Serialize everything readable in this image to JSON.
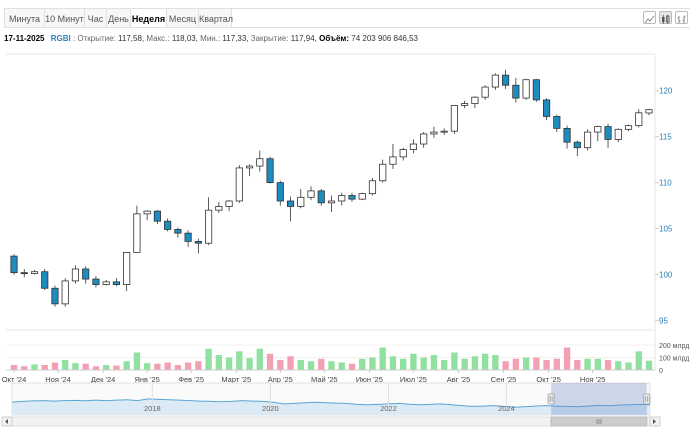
{
  "tabs": [
    {
      "label": "Минута",
      "active": false
    },
    {
      "label": "10 Минут",
      "active": false
    },
    {
      "label": "Час",
      "active": false
    },
    {
      "label": "День",
      "active": false
    },
    {
      "label": "Неделя",
      "active": true
    },
    {
      "label": "Месяц",
      "active": false
    },
    {
      "label": "Квартал",
      "active": false
    }
  ],
  "chart_types": [
    "area-chart-icon",
    "candlestick-chart-icon",
    "bar-chart-icon"
  ],
  "info": {
    "date": "17-11-2025",
    "ticker": "RGBI",
    "open_label": "Открытие:",
    "open": "117,58",
    "high_label": "Макс.:",
    "high": "118,03",
    "low_label": "Мин.:",
    "low": "117,33",
    "close_label": "Закрытие:",
    "close": "117,94",
    "volume_label": "Объём:",
    "volume": "74 203 906 846,53"
  },
  "colors": {
    "up_fill": "#ffffff",
    "down_fill": "#1f8cc0",
    "candle_stroke": "#333333",
    "vol_up": "#90e0a0",
    "vol_down": "#f4a0b4",
    "axis_text": "#2c7fb8",
    "navigator_line": "#5aa6d6",
    "navigator_fill": "#dceaf6",
    "navigator_mask": "rgba(102,133,194,0.3)"
  },
  "chart_data": {
    "type": "candlestick",
    "interval": "week",
    "yaxis": {
      "ticks": [
        95,
        100,
        105,
        110,
        115,
        120
      ],
      "range": [
        94.5,
        124
      ]
    },
    "volume_axis": {
      "ticks": [
        "0",
        "100 млрд",
        "200 млрд"
      ],
      "tick_values": [
        0,
        100,
        200
      ],
      "range": [
        0,
        240
      ],
      "unit": "млрд"
    },
    "xaxis": {
      "labels": [
        "Окт '24",
        "Ноя '24",
        "Дек '24",
        "Янв '25",
        "Фев '25",
        "Март '25",
        "Апр '25",
        "Май '25",
        "Июн '25",
        "Июл '25",
        "Авг '25",
        "Сен '25",
        "Окт '25",
        "Ноя '25"
      ],
      "label_index": [
        0,
        4.3,
        8.7,
        13,
        17.3,
        21.7,
        26,
        30.3,
        34.7,
        39,
        43.4,
        47.8,
        52.2,
        56.5
      ]
    },
    "candles": [
      {
        "o": 102.0,
        "h": 102.2,
        "c": 100.2,
        "l": 100.0,
        "v": 40
      },
      {
        "o": 100.2,
        "h": 100.6,
        "c": 100.1,
        "l": 99.7,
        "v": 30
      },
      {
        "o": 100.1,
        "h": 100.5,
        "c": 100.3,
        "l": 100.0,
        "v": 45
      },
      {
        "o": 100.3,
        "h": 100.6,
        "c": 98.5,
        "l": 98.3,
        "v": 40
      },
      {
        "o": 98.5,
        "h": 98.8,
        "c": 96.8,
        "l": 96.5,
        "v": 60
      },
      {
        "o": 96.8,
        "h": 99.6,
        "c": 99.3,
        "l": 96.5,
        "v": 80
      },
      {
        "o": 99.3,
        "h": 101.0,
        "c": 100.6,
        "l": 99.0,
        "v": 55
      },
      {
        "o": 100.6,
        "h": 100.9,
        "c": 99.5,
        "l": 99.0,
        "v": 50
      },
      {
        "o": 99.5,
        "h": 99.8,
        "c": 98.9,
        "l": 98.6,
        "v": 30
      },
      {
        "o": 98.9,
        "h": 99.4,
        "c": 99.2,
        "l": 98.8,
        "v": 40
      },
      {
        "o": 99.2,
        "h": 99.6,
        "c": 98.9,
        "l": 98.7,
        "v": 35
      },
      {
        "o": 98.9,
        "h": 102.4,
        "c": 102.4,
        "l": 98.2,
        "v": 70
      },
      {
        "o": 102.4,
        "h": 107.5,
        "c": 106.6,
        "l": 102.4,
        "v": 140
      },
      {
        "o": 106.6,
        "h": 107.0,
        "c": 106.9,
        "l": 105.9,
        "v": 55
      },
      {
        "o": 106.9,
        "h": 107.0,
        "c": 105.8,
        "l": 105.5,
        "v": 50
      },
      {
        "o": 105.8,
        "h": 106.1,
        "c": 104.9,
        "l": 104.7,
        "v": 60
      },
      {
        "o": 104.9,
        "h": 105.1,
        "c": 104.5,
        "l": 104.0,
        "v": 40
      },
      {
        "o": 104.5,
        "h": 104.8,
        "c": 103.6,
        "l": 103.0,
        "v": 60
      },
      {
        "o": 103.6,
        "h": 103.9,
        "c": 103.4,
        "l": 102.3,
        "v": 70
      },
      {
        "o": 103.4,
        "h": 108.4,
        "c": 107.0,
        "l": 103.2,
        "v": 170
      },
      {
        "o": 107.0,
        "h": 107.9,
        "c": 107.4,
        "l": 106.7,
        "v": 120
      },
      {
        "o": 107.4,
        "h": 108.1,
        "c": 108.0,
        "l": 106.9,
        "v": 100
      },
      {
        "o": 108.0,
        "h": 111.9,
        "c": 111.6,
        "l": 107.8,
        "v": 150
      },
      {
        "o": 111.6,
        "h": 112.0,
        "c": 111.8,
        "l": 110.7,
        "v": 95
      },
      {
        "o": 111.8,
        "h": 113.5,
        "c": 112.6,
        "l": 111.2,
        "v": 170
      },
      {
        "o": 112.6,
        "h": 112.8,
        "c": 110.0,
        "l": 109.9,
        "v": 130
      },
      {
        "o": 110.0,
        "h": 110.2,
        "c": 108.0,
        "l": 107.5,
        "v": 80
      },
      {
        "o": 108.0,
        "h": 108.5,
        "c": 107.4,
        "l": 105.8,
        "v": 110
      },
      {
        "o": 107.4,
        "h": 109.3,
        "c": 108.4,
        "l": 107.2,
        "v": 80
      },
      {
        "o": 108.4,
        "h": 109.6,
        "c": 109.1,
        "l": 108.1,
        "v": 70
      },
      {
        "o": 109.1,
        "h": 109.3,
        "c": 107.8,
        "l": 107.5,
        "v": 90
      },
      {
        "o": 107.8,
        "h": 108.6,
        "c": 108.0,
        "l": 106.8,
        "v": 70
      },
      {
        "o": 108.0,
        "h": 108.9,
        "c": 108.6,
        "l": 107.5,
        "v": 60
      },
      {
        "o": 108.6,
        "h": 108.9,
        "c": 108.2,
        "l": 107.9,
        "v": 50
      },
      {
        "o": 108.2,
        "h": 108.9,
        "c": 108.8,
        "l": 108.1,
        "v": 90
      },
      {
        "o": 108.8,
        "h": 110.5,
        "c": 110.2,
        "l": 108.6,
        "v": 100
      },
      {
        "o": 110.2,
        "h": 112.5,
        "c": 112.0,
        "l": 110.0,
        "v": 180
      },
      {
        "o": 112.0,
        "h": 114.2,
        "c": 112.8,
        "l": 111.5,
        "v": 110
      },
      {
        "o": 112.8,
        "h": 113.8,
        "c": 113.6,
        "l": 112.4,
        "v": 90
      },
      {
        "o": 113.6,
        "h": 114.7,
        "c": 114.2,
        "l": 113.2,
        "v": 130
      },
      {
        "o": 114.2,
        "h": 115.5,
        "c": 115.3,
        "l": 113.8,
        "v": 100
      },
      {
        "o": 115.3,
        "h": 116.1,
        "c": 115.5,
        "l": 114.9,
        "v": 120
      },
      {
        "o": 115.5,
        "h": 115.9,
        "c": 115.6,
        "l": 115.2,
        "v": 80
      },
      {
        "o": 115.6,
        "h": 118.4,
        "c": 118.4,
        "l": 115.3,
        "v": 140
      },
      {
        "o": 118.4,
        "h": 118.9,
        "c": 118.6,
        "l": 118.1,
        "v": 90
      },
      {
        "o": 118.6,
        "h": 119.4,
        "c": 119.3,
        "l": 118.1,
        "v": 110
      },
      {
        "o": 119.3,
        "h": 120.6,
        "c": 120.4,
        "l": 119.0,
        "v": 130
      },
      {
        "o": 120.4,
        "h": 121.9,
        "c": 121.7,
        "l": 120.1,
        "v": 120
      },
      {
        "o": 121.7,
        "h": 122.3,
        "c": 120.6,
        "l": 120.2,
        "v": 70
      },
      {
        "o": 120.6,
        "h": 121.4,
        "c": 119.2,
        "l": 118.7,
        "v": 90
      },
      {
        "o": 119.2,
        "h": 121.3,
        "c": 121.2,
        "l": 119.0,
        "v": 100
      },
      {
        "o": 121.2,
        "h": 121.3,
        "c": 119.0,
        "l": 118.8,
        "v": 100
      },
      {
        "o": 119.0,
        "h": 119.2,
        "c": 117.2,
        "l": 116.8,
        "v": 80
      },
      {
        "o": 117.2,
        "h": 117.4,
        "c": 115.9,
        "l": 115.5,
        "v": 90
      },
      {
        "o": 115.9,
        "h": 116.2,
        "c": 114.4,
        "l": 113.7,
        "v": 180
      },
      {
        "o": 114.4,
        "h": 114.6,
        "c": 113.8,
        "l": 112.9,
        "v": 80
      },
      {
        "o": 113.8,
        "h": 115.8,
        "c": 115.5,
        "l": 113.5,
        "v": 90
      },
      {
        "o": 115.5,
        "h": 116.2,
        "c": 116.1,
        "l": 114.5,
        "v": 90
      },
      {
        "o": 116.1,
        "h": 116.4,
        "c": 114.7,
        "l": 113.8,
        "v": 80
      },
      {
        "o": 114.7,
        "h": 115.9,
        "c": 115.8,
        "l": 114.4,
        "v": 70
      },
      {
        "o": 115.8,
        "h": 116.3,
        "c": 116.2,
        "l": 115.6,
        "v": 60
      },
      {
        "o": 116.2,
        "h": 118.0,
        "c": 117.6,
        "l": 116.0,
        "v": 150
      },
      {
        "o": 117.58,
        "h": 118.03,
        "c": 117.94,
        "l": 117.33,
        "v": 74.2
      }
    ],
    "navigator": {
      "year_labels": [
        "2018",
        "2020",
        "2022",
        "2024"
      ],
      "year_index": [
        0.22,
        0.405,
        0.59,
        0.775
      ],
      "series": [
        0.45,
        0.5,
        0.53,
        0.55,
        0.52,
        0.55,
        0.56,
        0.54,
        0.58,
        0.55,
        0.58,
        0.6,
        0.55,
        0.65,
        0.62,
        0.6,
        0.58,
        0.55,
        0.52,
        0.5,
        0.48,
        0.5,
        0.55,
        0.52,
        0.5,
        0.45,
        0.35,
        0.38,
        0.42,
        0.45,
        0.42,
        0.4,
        0.38,
        0.32,
        0.3,
        0.32,
        0.35,
        0.38,
        0.33,
        0.3,
        0.32,
        0.35,
        0.3,
        0.25,
        0.2,
        0.22,
        0.25,
        0.2,
        0.15,
        0.18,
        0.22,
        0.25,
        0.22,
        0.2,
        0.18,
        0.22,
        0.26,
        0.24,
        0.28,
        0.3,
        0.32,
        0.3
      ],
      "selection": [
        0.845,
        0.955
      ]
    }
  }
}
